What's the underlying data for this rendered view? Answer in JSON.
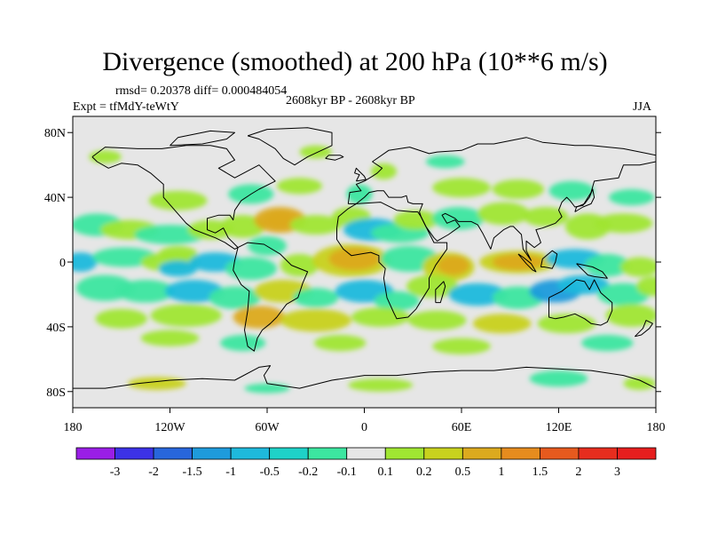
{
  "title": "Divergence (smoothed) at 200 hPa (10**6 m/s)",
  "stats": "rmsd= 0.20378 diff= 0.000484054",
  "experiment": "Expt = tfMdY-teWtY",
  "period": "2608kyr BP - 2608kyr BP",
  "season": "JJA",
  "map": {
    "lat_labels": [
      "80N",
      "40N",
      "0",
      "40S",
      "80S"
    ],
    "lat_values": [
      80,
      40,
      0,
      -40,
      -80
    ],
    "lon_labels": [
      "180",
      "120W",
      "60W",
      "0",
      "60E",
      "120E",
      "180"
    ],
    "lon_values": [
      -180,
      -120,
      -60,
      0,
      60,
      120,
      180
    ],
    "lat_range": [
      -90,
      90
    ],
    "lon_range": [
      -180,
      180
    ]
  },
  "colorbar": {
    "labels": [
      "-3",
      "-2",
      "-1.5",
      "-1",
      "-0.5",
      "-0.2",
      "-0.1",
      "0.1",
      "0.2",
      "0.5",
      "1",
      "1.5",
      "2",
      "3"
    ],
    "colors": [
      "#9a1ee6",
      "#3c32e6",
      "#2866dc",
      "#1e9bdc",
      "#1eb9dc",
      "#1ed2c8",
      "#3ce6a0",
      "#e6e6e6",
      "#a0e632",
      "#c8d21e",
      "#dcaa1e",
      "#e68c1e",
      "#e65a1e",
      "#e62d1e",
      "#e61e1e"
    ]
  },
  "colors": {
    "background": "#e6e6e6",
    "coast": "#000000"
  }
}
